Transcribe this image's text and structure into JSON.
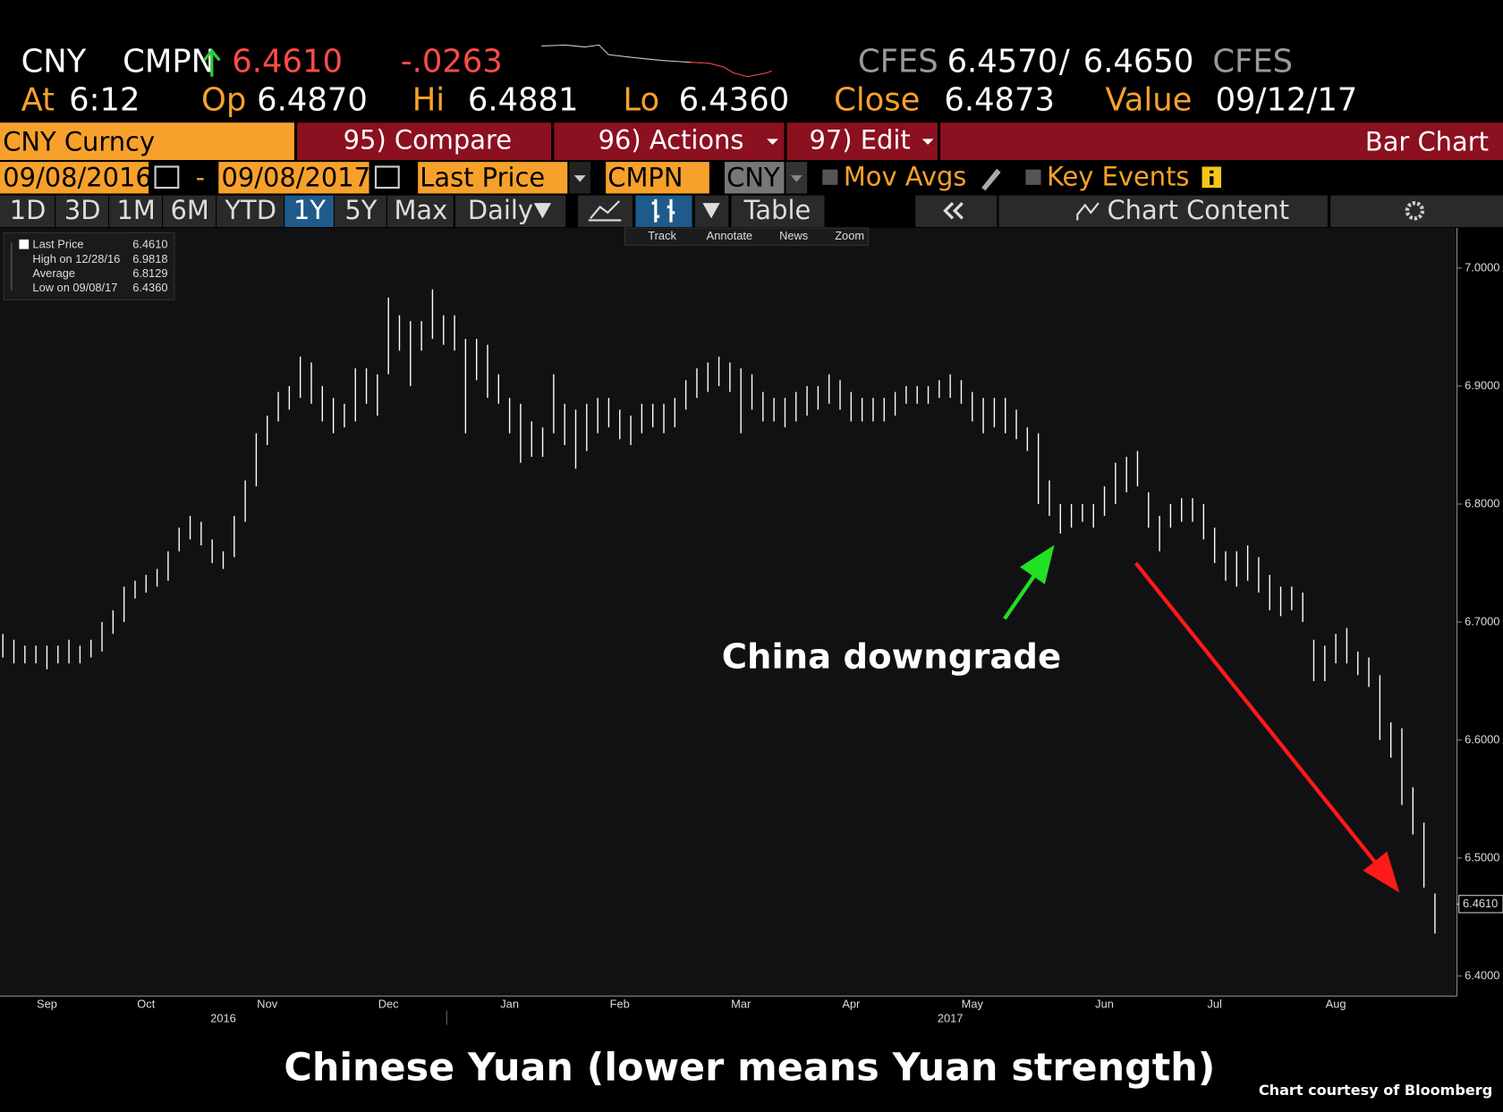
{
  "quote": {
    "ticker": "CNY",
    "source": "CMPN",
    "last": "6.4610",
    "change": "-.0263",
    "bid_source": "CFES",
    "bid": "6.4570",
    "separator": "/",
    "ask": "6.4650",
    "ask_source": "CFES",
    "at_label": "At",
    "time": "6:12",
    "open_label": "Op",
    "open": "6.4870",
    "high_label": "Hi",
    "high": "6.4881",
    "low_label": "Lo",
    "low": "6.4360",
    "close_label": "Close",
    "close": "6.4873",
    "value_label": "Value",
    "value_date": "09/12/17"
  },
  "toolbar": {
    "security": "CNY Curncy",
    "compare": "95) Compare",
    "actions": "96) Actions",
    "edit": "97) Edit",
    "chart_type": "Bar Chart",
    "start_date": "09/08/2016",
    "dash": "-",
    "end_date": "09/08/2017",
    "field": "Last Price",
    "source": "CMPN",
    "currency": "CNY",
    "mov_avgs": "Mov Avgs",
    "key_events": "Key Events",
    "periods": [
      "1D",
      "3D",
      "1M",
      "6M",
      "YTD",
      "1Y",
      "5Y",
      "Max"
    ],
    "frequency": "Daily",
    "table": "Table",
    "chart_content": "Chart Content",
    "tools": [
      "Track",
      "Annotate",
      "News",
      "Zoom"
    ]
  },
  "legend": {
    "rows": [
      {
        "label": "Last Price",
        "value": "6.4610"
      },
      {
        "label": "High on 12/28/16",
        "value": "6.9818"
      },
      {
        "label": "Average",
        "value": "6.8129"
      },
      {
        "label": "Low on 09/08/17",
        "value": "6.4360"
      }
    ]
  },
  "chart_data": {
    "type": "ohlc",
    "color": "#ffffff",
    "categories": [
      null,
      null,
      null,
      null,
      "Sep",
      null,
      null,
      null,
      null,
      null,
      null,
      null,
      null,
      "Oct",
      null,
      null,
      null,
      null,
      null,
      null,
      null,
      null,
      null,
      null,
      "Nov",
      null,
      null,
      null,
      null,
      null,
      null,
      null,
      null,
      null,
      null,
      "Dec",
      null,
      null,
      null,
      null,
      null,
      null,
      null,
      null,
      null,
      null,
      "Jan",
      null,
      null,
      null,
      null,
      null,
      null,
      null,
      null,
      null,
      "Feb",
      null,
      null,
      null,
      null,
      null,
      null,
      null,
      null,
      null,
      null,
      "Mar",
      null,
      null,
      null,
      null,
      null,
      null,
      null,
      null,
      null,
      "Apr",
      null,
      null,
      null,
      null,
      null,
      null,
      null,
      null,
      null,
      null,
      "May",
      null,
      null,
      null,
      null,
      null,
      null,
      null,
      null,
      null,
      null,
      null,
      "Jun",
      null,
      null,
      null,
      null,
      null,
      null,
      null,
      null,
      null,
      "Jul",
      null,
      null,
      null,
      null,
      null,
      null,
      null,
      null,
      null,
      null,
      "Aug",
      null,
      null,
      null,
      null,
      null,
      null,
      null,
      null,
      null
    ],
    "year_categories": [
      null,
      null,
      null,
      null,
      null,
      null,
      null,
      null,
      null,
      null,
      null,
      null,
      null,
      null,
      null,
      null,
      null,
      null,
      null,
      null,
      "2016",
      null,
      null,
      null,
      null,
      null,
      null,
      null,
      null,
      null,
      null,
      null,
      null,
      null,
      null,
      null,
      null,
      null,
      null,
      null,
      null,
      null,
      null,
      null,
      null,
      null,
      null,
      null,
      null,
      null,
      null,
      null,
      null,
      null,
      null,
      null,
      null,
      null,
      null,
      null,
      null,
      null,
      null,
      null,
      null,
      null,
      null,
      null,
      null,
      null,
      null,
      null,
      null,
      null,
      null,
      null,
      null,
      null,
      null,
      null,
      null,
      null,
      null,
      null,
      null,
      null,
      "2017",
      null,
      null,
      null,
      null,
      null,
      null,
      null,
      null,
      null,
      null,
      null,
      null,
      null,
      null,
      null,
      null,
      null,
      null,
      null,
      null,
      null,
      null,
      null,
      null,
      null,
      null,
      null,
      null,
      null,
      null,
      null,
      null,
      null,
      null,
      null,
      null,
      null,
      null,
      null,
      null,
      null,
      null,
      null,
      null
    ],
    "high": [
      6.69,
      6.685,
      6.68,
      6.68,
      6.68,
      6.68,
      6.685,
      6.68,
      6.685,
      6.7,
      6.71,
      6.73,
      6.735,
      6.74,
      6.745,
      6.76,
      6.78,
      6.79,
      6.785,
      6.77,
      6.76,
      6.79,
      6.82,
      6.86,
      6.875,
      6.895,
      6.9,
      6.925,
      6.92,
      6.9,
      6.89,
      6.885,
      6.915,
      6.915,
      6.91,
      6.975,
      6.96,
      6.955,
      6.955,
      6.982,
      6.96,
      6.96,
      6.94,
      6.94,
      6.935,
      6.91,
      6.89,
      6.885,
      6.87,
      6.865,
      6.91,
      6.885,
      6.88,
      6.885,
      6.89,
      6.89,
      6.88,
      6.875,
      6.885,
      6.885,
      6.885,
      6.89,
      6.905,
      6.915,
      6.92,
      6.925,
      6.92,
      6.915,
      6.91,
      6.895,
      6.89,
      6.89,
      6.895,
      6.9,
      6.9,
      6.91,
      6.905,
      6.895,
      6.89,
      6.89,
      6.89,
      6.895,
      6.9,
      6.9,
      6.9,
      6.905,
      6.91,
      6.905,
      6.895,
      6.89,
      6.89,
      6.89,
      6.88,
      6.865,
      6.86,
      6.82,
      6.8,
      6.8,
      6.8,
      6.8,
      6.815,
      6.835,
      6.84,
      6.845,
      6.81,
      6.79,
      6.8,
      6.805,
      6.805,
      6.8,
      6.78,
      6.76,
      6.76,
      6.765,
      6.755,
      6.74,
      6.73,
      6.73,
      6.725,
      6.685,
      6.68,
      6.69,
      6.695,
      6.675,
      6.67,
      6.655,
      6.615,
      6.61,
      6.56,
      6.53,
      6.47
    ],
    "low": [
      6.67,
      6.665,
      6.665,
      6.665,
      6.66,
      6.665,
      6.665,
      6.665,
      6.67,
      6.675,
      6.69,
      6.7,
      6.72,
      6.725,
      6.73,
      6.735,
      6.76,
      6.77,
      6.765,
      6.75,
      6.745,
      6.755,
      6.785,
      6.815,
      6.85,
      6.87,
      6.88,
      6.89,
      6.885,
      6.87,
      6.86,
      6.865,
      6.87,
      6.885,
      6.875,
      6.91,
      6.93,
      6.9,
      6.93,
      6.94,
      6.935,
      6.93,
      6.86,
      6.905,
      6.89,
      6.885,
      6.86,
      6.835,
      6.84,
      6.84,
      6.86,
      6.85,
      6.83,
      6.845,
      6.86,
      6.865,
      6.855,
      6.85,
      6.86,
      6.865,
      6.86,
      6.865,
      6.88,
      6.89,
      6.895,
      6.9,
      6.895,
      6.86,
      6.88,
      6.87,
      6.87,
      6.865,
      6.87,
      6.875,
      6.88,
      6.885,
      6.88,
      6.87,
      6.87,
      6.87,
      6.87,
      6.875,
      6.885,
      6.885,
      6.885,
      6.89,
      6.89,
      6.885,
      6.87,
      6.86,
      6.865,
      6.86,
      6.855,
      6.845,
      6.8,
      6.79,
      6.775,
      6.78,
      6.785,
      6.78,
      6.79,
      6.8,
      6.81,
      6.815,
      6.78,
      6.76,
      6.78,
      6.785,
      6.785,
      6.77,
      6.75,
      6.735,
      6.73,
      6.735,
      6.725,
      6.71,
      6.705,
      6.71,
      6.7,
      6.65,
      6.65,
      6.665,
      6.665,
      6.655,
      6.645,
      6.6,
      6.585,
      6.545,
      6.52,
      6.475,
      6.436
    ],
    "ylim": [
      6.383,
      7.034
    ],
    "yticks": [
      {
        "value": 6.4,
        "label": "6.4000"
      },
      {
        "value": 6.5,
        "label": "6.5000"
      },
      {
        "value": 6.6,
        "label": "6.6000"
      },
      {
        "value": 6.7,
        "label": "6.7000"
      },
      {
        "value": 6.8,
        "label": "6.8000"
      },
      {
        "value": 6.9,
        "label": "6.9000"
      },
      {
        "value": 7.0,
        "label": "7.0000"
      }
    ],
    "last_price": {
      "value": 6.461,
      "label": "6.4610"
    },
    "grid": false,
    "annotation": "China downgrade"
  },
  "caption": "Chinese Yuan (lower means Yuan strength)",
  "credit": "Chart courtesy of Bloomberg"
}
